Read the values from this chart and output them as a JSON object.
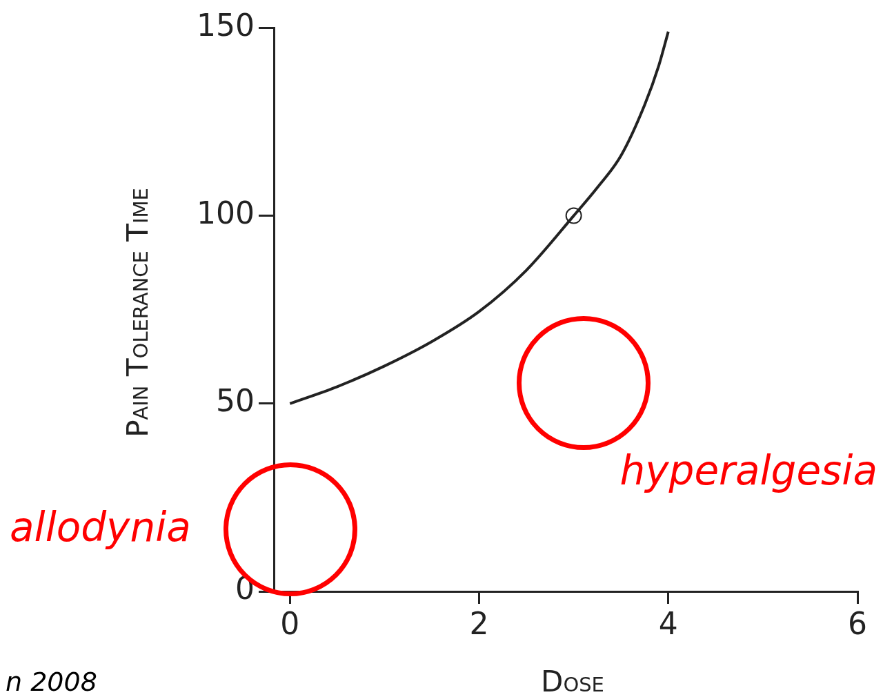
{
  "chart_data": {
    "type": "line",
    "xlabel": "Dose",
    "ylabel": "Pain Tolerance Time",
    "xlim": [
      -0.17,
      6
    ],
    "xticks": [
      0,
      2,
      4,
      6
    ],
    "ylim": [
      0,
      150
    ],
    "yticks": [
      0,
      50,
      100,
      150
    ],
    "grid": false,
    "legend": false,
    "series": [
      {
        "color": "#222222",
        "marker": "none",
        "x": [
          0,
          0.5,
          1,
          1.5,
          2,
          2.5,
          3,
          3.25,
          3.5,
          3.75,
          3.9,
          4
        ],
        "values": [
          50,
          54.5,
          60,
          66.5,
          74.5,
          85.5,
          100,
          107.5,
          116,
          129.5,
          140,
          149
        ]
      },
      {
        "type": "scatter",
        "color": "#222222",
        "marker": "circle",
        "x": [
          3
        ],
        "values": [
          100
        ]
      }
    ],
    "annotations": [
      "allodynia",
      "hyperalgesia",
      "n 2008"
    ]
  }
}
